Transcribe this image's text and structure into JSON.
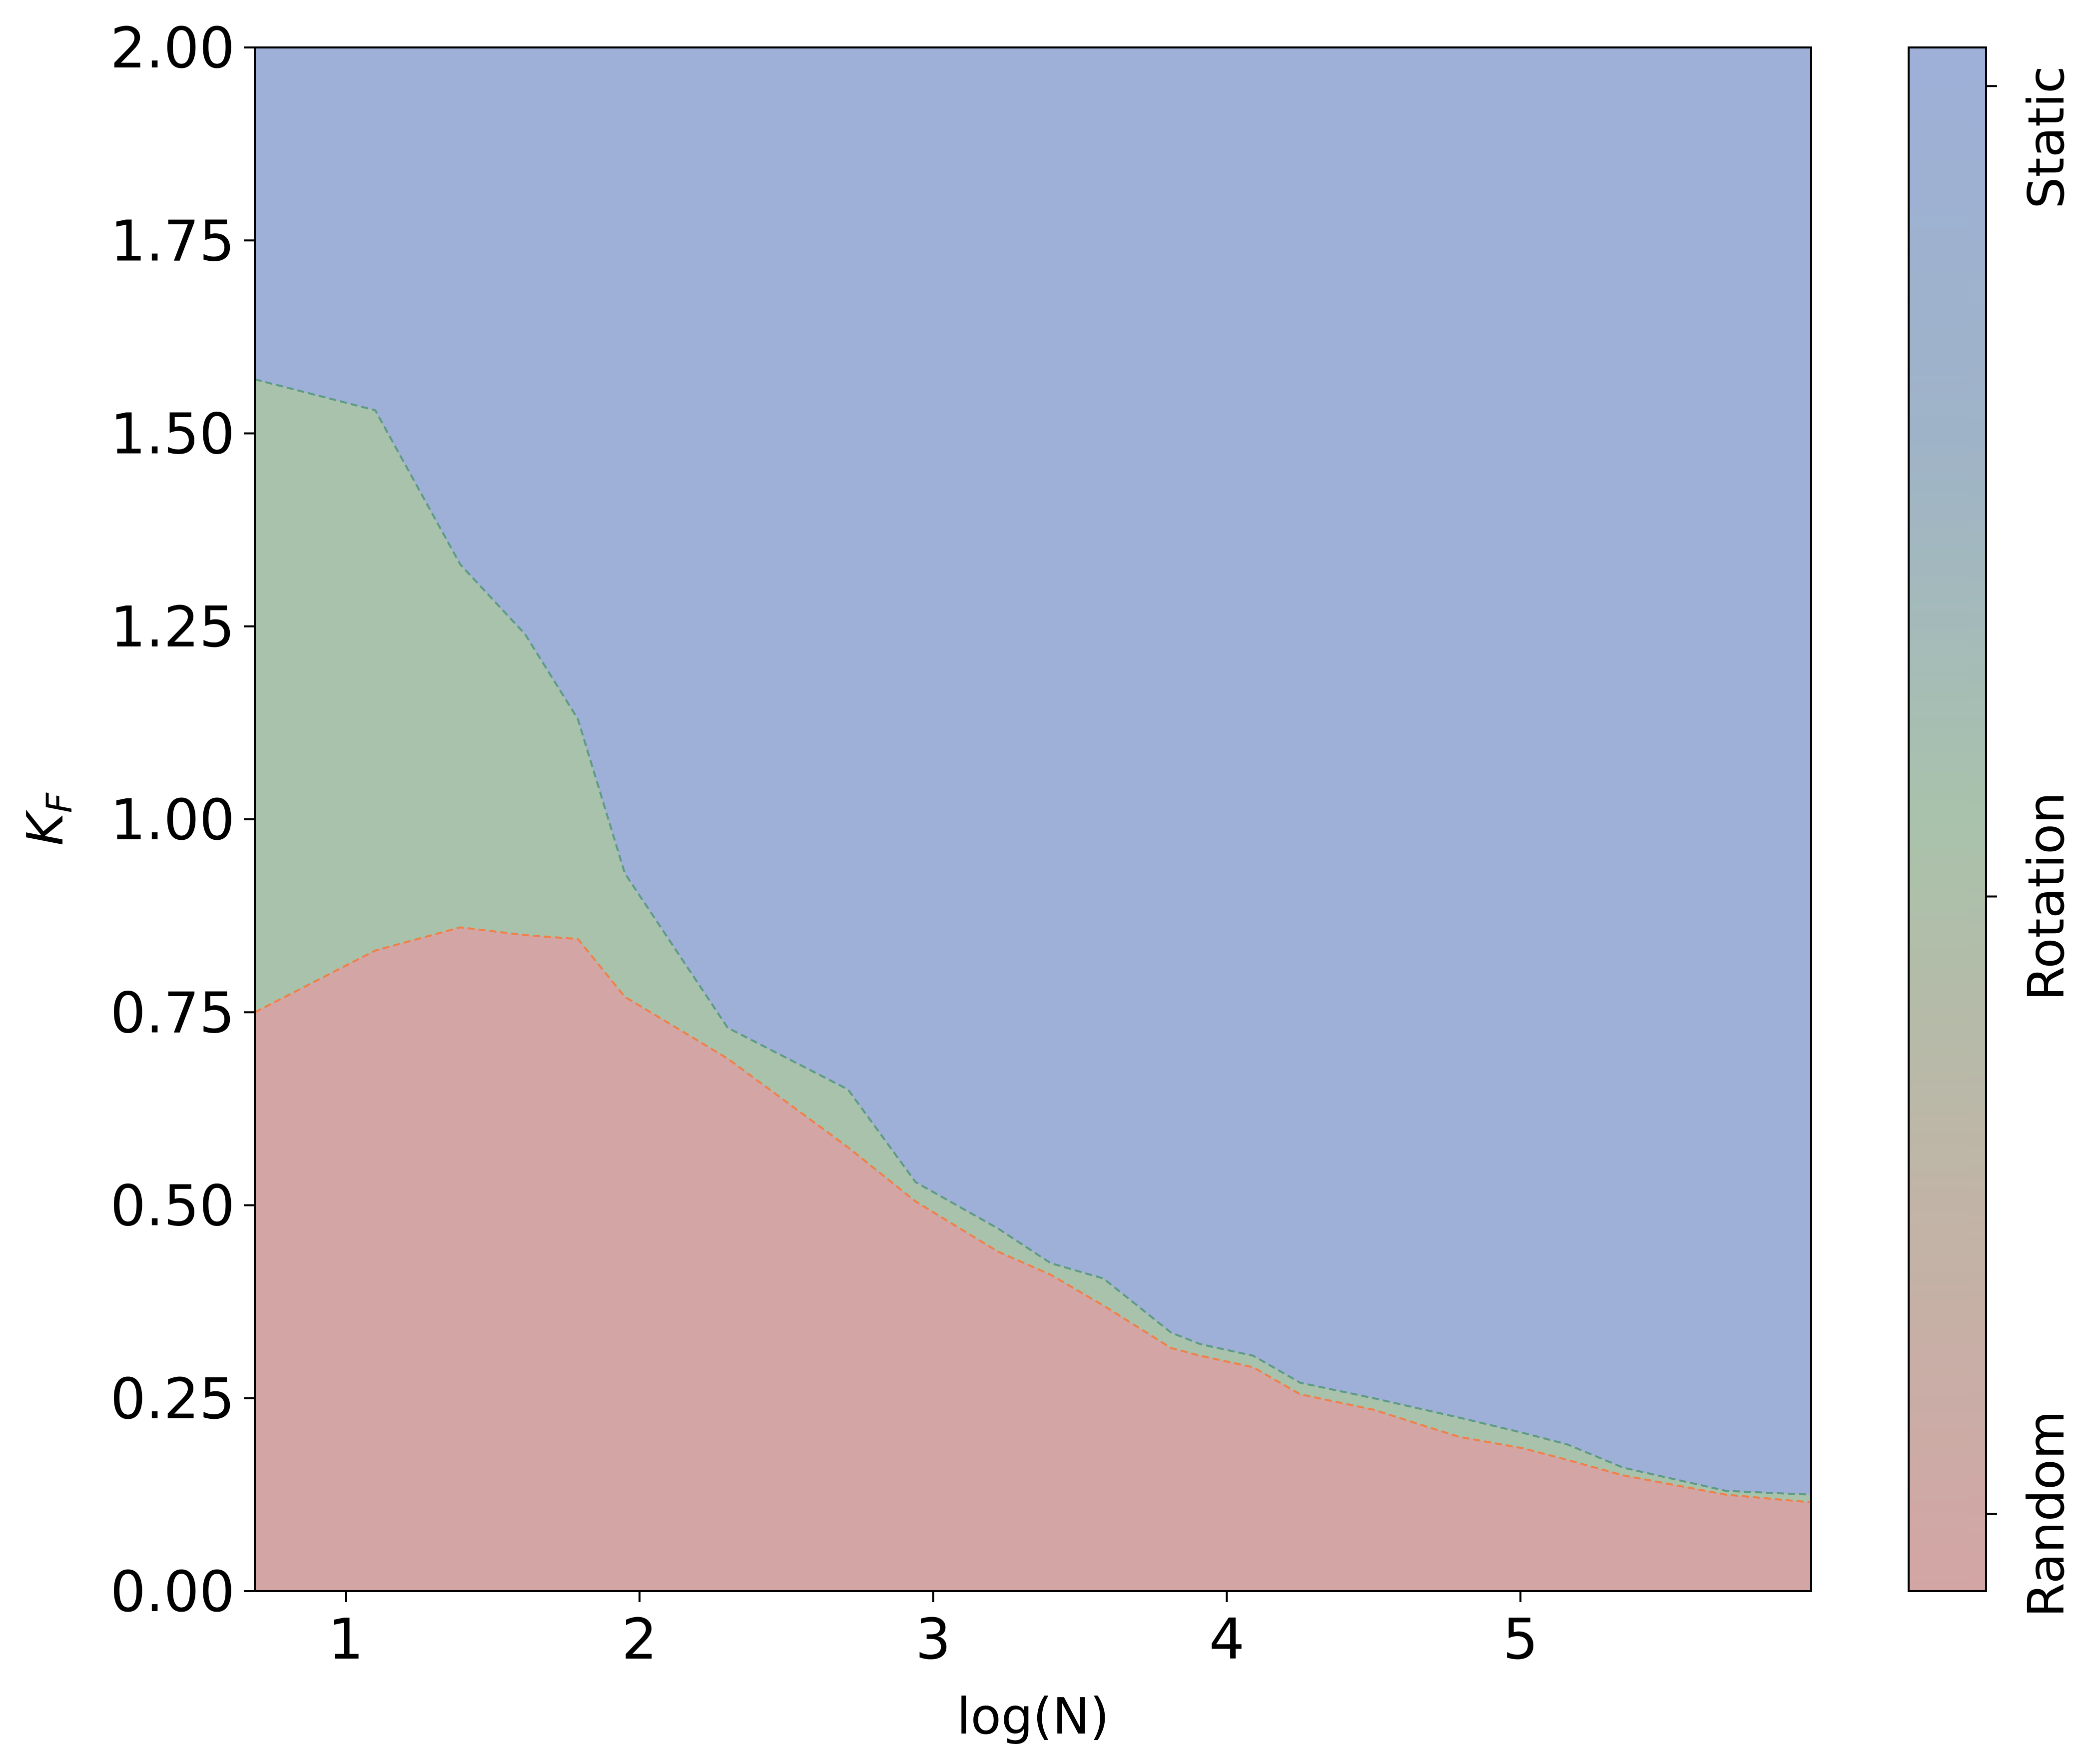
{
  "chart_data": {
    "type": "area",
    "xlabel": "log(N)",
    "ylabel": "K",
    "ylabel_sub": "F",
    "xlim": [
      0.69,
      5.99
    ],
    "ylim": [
      0,
      2
    ],
    "x_ticks": [
      "1",
      "2",
      "3",
      "4",
      "5"
    ],
    "x_tick_values": [
      1,
      2,
      3,
      4,
      5
    ],
    "y_ticks": [
      "0.00",
      "0.25",
      "0.50",
      "0.75",
      "1.00",
      "1.25",
      "1.50",
      "1.75",
      "2.00"
    ],
    "y_tick_values": [
      0,
      0.25,
      0.5,
      0.75,
      1.0,
      1.25,
      1.5,
      1.75,
      2.0
    ],
    "regions": [
      {
        "name": "Random",
        "color": "#d3a5a5"
      },
      {
        "name": "Rotation",
        "color": "#a9c2ab"
      },
      {
        "name": "Static",
        "color": "#9eb0d8"
      }
    ],
    "colorbar": {
      "tick_labels": [
        "Random",
        "Rotation",
        "Static"
      ],
      "tick_values": [
        0.1,
        0.9,
        1.95
      ],
      "range": [
        0,
        2
      ],
      "colors": [
        "#d3a5a5",
        "#c1b4a6",
        "#a9c2ab",
        "#9fb3c8",
        "#9eb0d8"
      ]
    },
    "series": [
      {
        "name": "Random/Rotation boundary",
        "color": "#f0804a",
        "x": [
          0.69,
          1.1,
          1.39,
          1.61,
          1.79,
          1.95,
          2.3,
          2.71,
          2.94,
          3.22,
          3.4,
          3.58,
          3.81,
          3.91,
          4.09,
          4.25,
          4.5,
          4.79,
          5.01,
          5.16,
          5.35,
          5.7,
          5.99
        ],
        "y": [
          0.75,
          0.83,
          0.86,
          0.85,
          0.845,
          0.77,
          0.69,
          0.575,
          0.505,
          0.44,
          0.41,
          0.37,
          0.315,
          0.305,
          0.29,
          0.255,
          0.235,
          0.2,
          0.185,
          0.17,
          0.15,
          0.125,
          0.115
        ]
      },
      {
        "name": "Rotation/Static boundary",
        "color": "#5e9b85",
        "x": [
          0.69,
          1.1,
          1.39,
          1.61,
          1.79,
          1.95,
          2.3,
          2.71,
          2.94,
          3.22,
          3.4,
          3.58,
          3.81,
          3.91,
          4.09,
          4.25,
          4.5,
          4.79,
          5.01,
          5.16,
          5.35,
          5.7,
          5.99
        ],
        "y": [
          1.57,
          1.53,
          1.33,
          1.24,
          1.13,
          0.93,
          0.73,
          0.65,
          0.53,
          0.47,
          0.425,
          0.405,
          0.335,
          0.32,
          0.305,
          0.27,
          0.25,
          0.225,
          0.205,
          0.19,
          0.16,
          0.13,
          0.125
        ]
      }
    ]
  }
}
